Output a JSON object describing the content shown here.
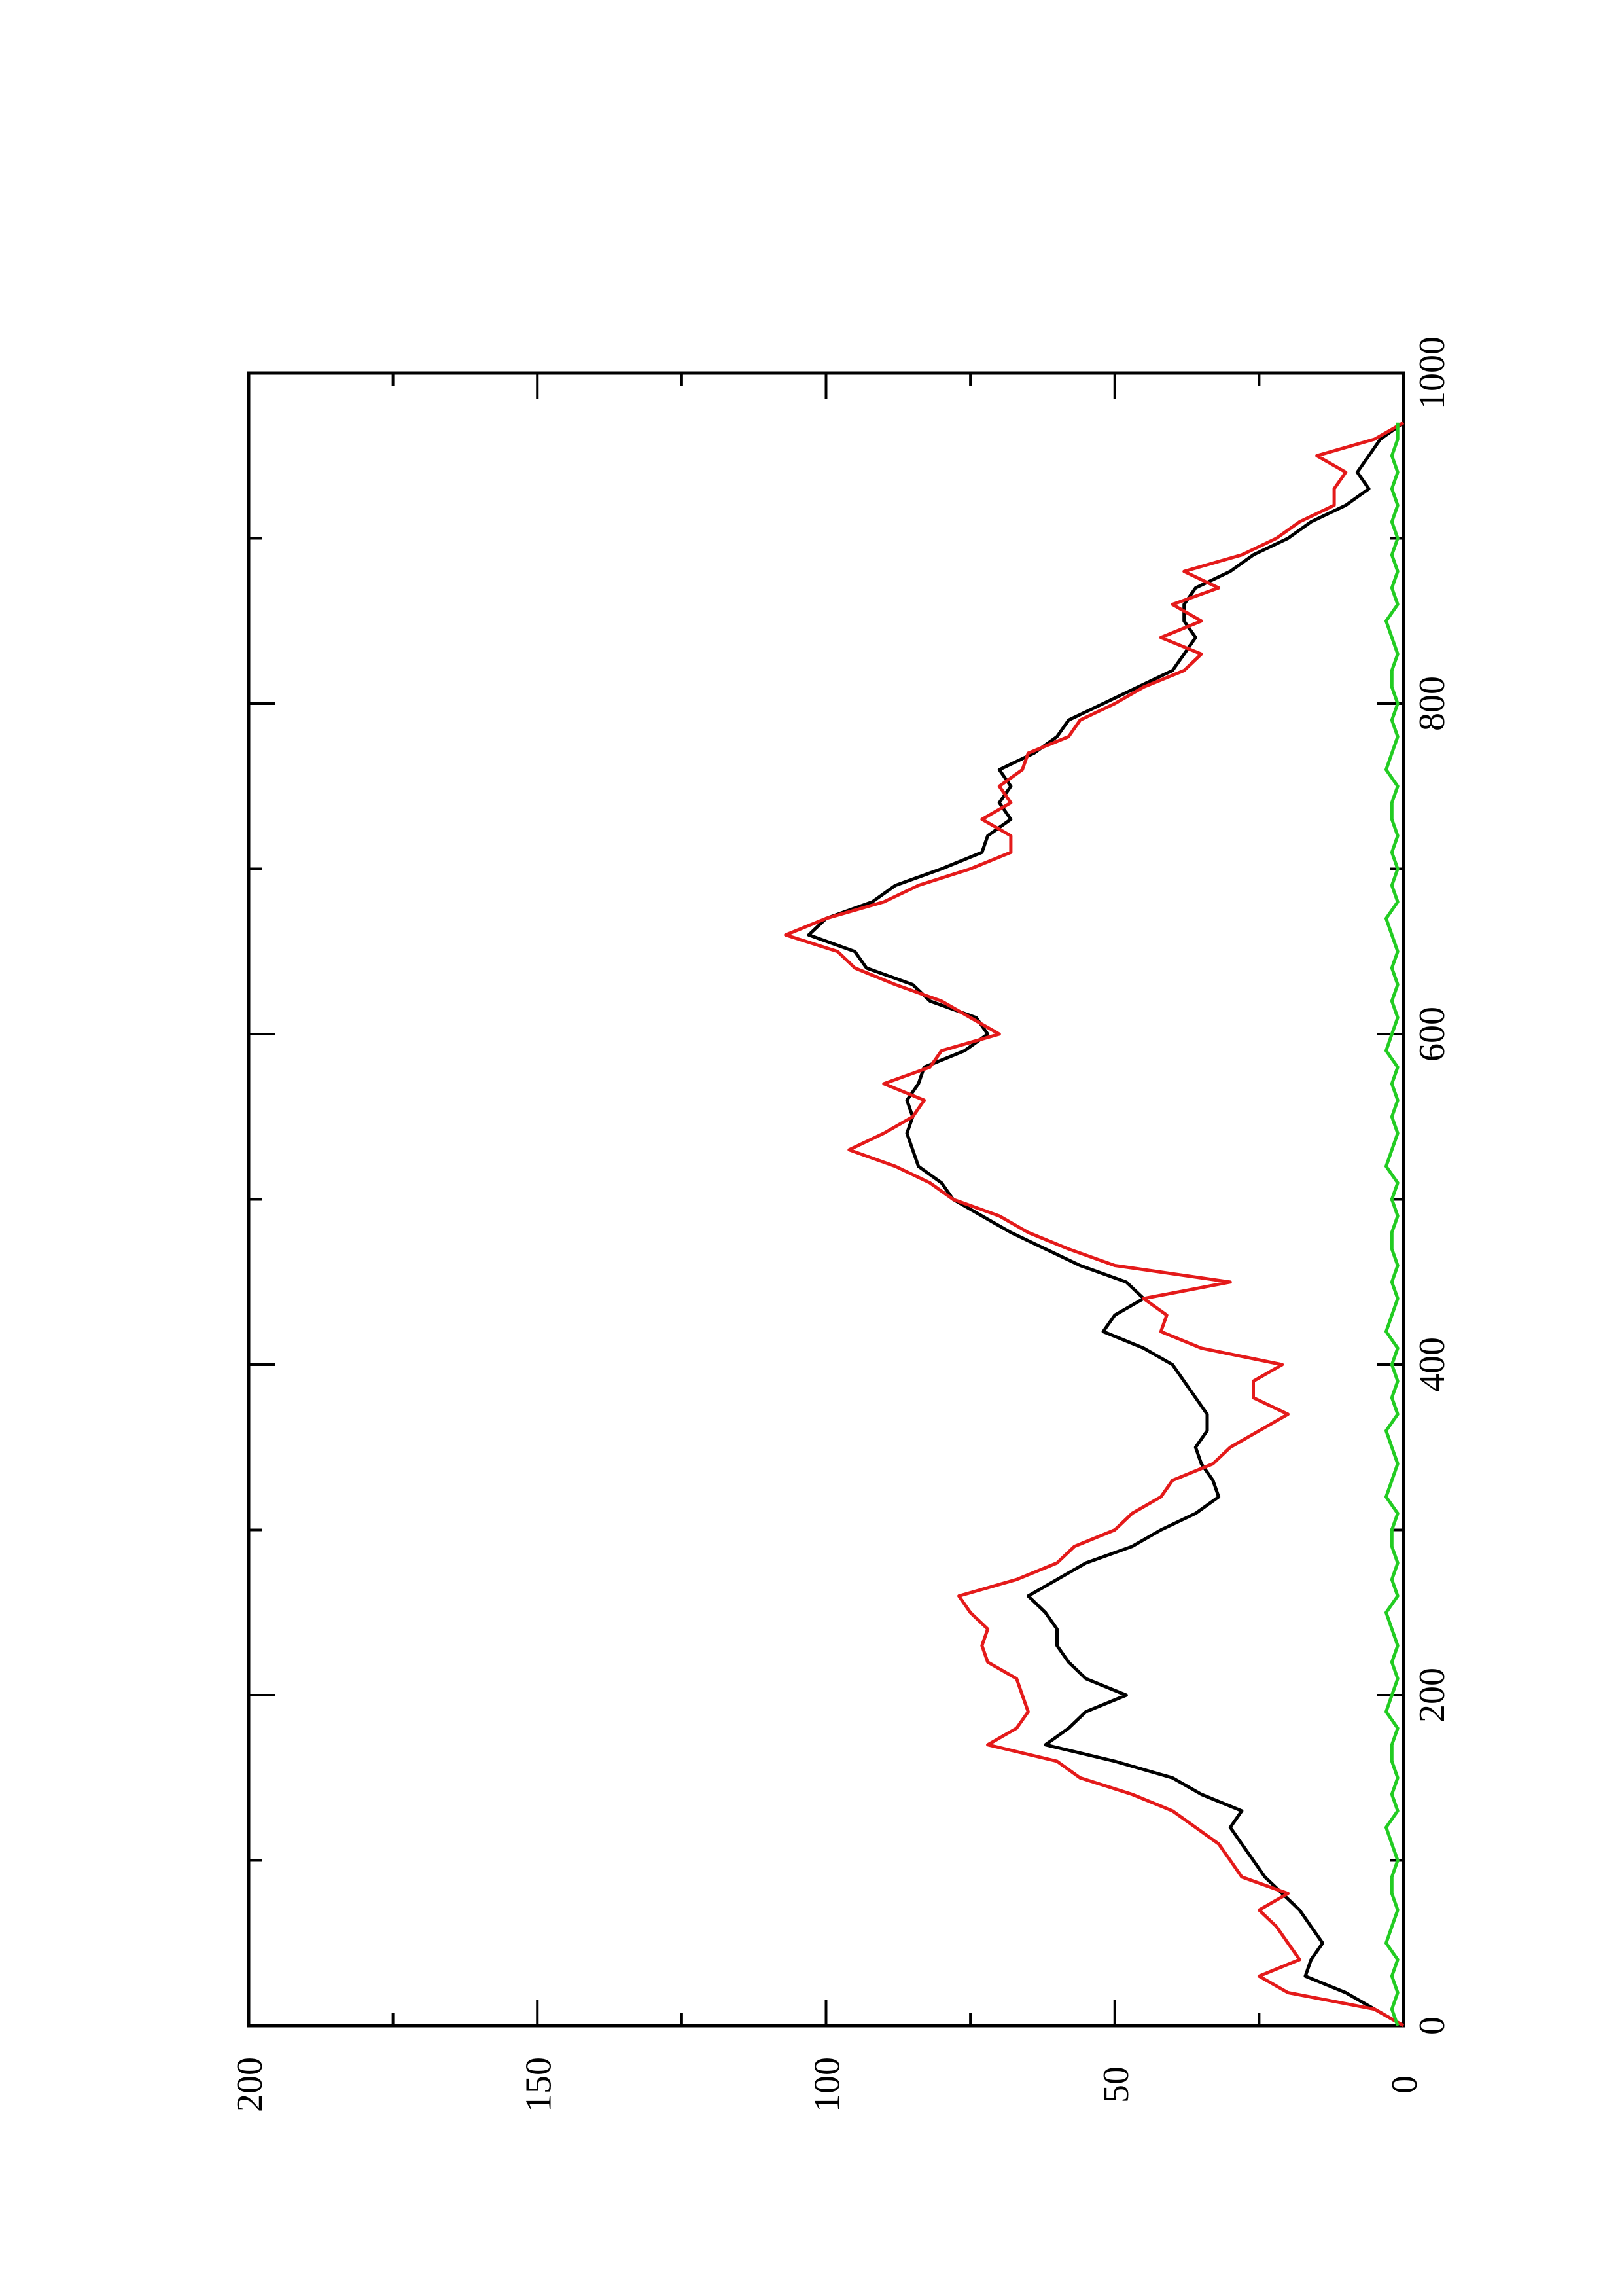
{
  "chart_data": {
    "type": "line",
    "title": "",
    "xlabel": "",
    "ylabel": "",
    "orientation": "rotated 90 degrees counter-clockwise (x axis runs bottom-to-top, y axis runs left-to-right)",
    "xlim": [
      0,
      1000
    ],
    "ylim": [
      0,
      200
    ],
    "x_ticks": [
      0,
      200,
      400,
      600,
      800,
      1000
    ],
    "y_ticks": [
      0,
      50,
      100,
      150,
      200
    ],
    "x_tick_labels": [
      "0",
      "200",
      "400",
      "600",
      "800",
      "1000"
    ],
    "y_tick_labels": [
      "0",
      "50",
      "100",
      "150",
      "200"
    ],
    "grid": false,
    "legend": "none",
    "series": [
      {
        "color": "#000000",
        "x": [
          0,
          10,
          20,
          30,
          40,
          50,
          60,
          70,
          80,
          90,
          100,
          110,
          120,
          130,
          140,
          150,
          160,
          170,
          180,
          190,
          200,
          210,
          220,
          230,
          240,
          250,
          260,
          270,
          280,
          290,
          300,
          310,
          320,
          330,
          340,
          350,
          360,
          370,
          380,
          390,
          400,
          410,
          420,
          430,
          440,
          450,
          460,
          470,
          480,
          490,
          500,
          510,
          520,
          530,
          540,
          550,
          560,
          570,
          580,
          590,
          600,
          610,
          620,
          630,
          640,
          650,
          660,
          670,
          680,
          690,
          700,
          710,
          720,
          730,
          740,
          750,
          760,
          770,
          780,
          790,
          800,
          810,
          820,
          830,
          840,
          850,
          860,
          870,
          880,
          890,
          900,
          910,
          920,
          930,
          940,
          950,
          960,
          970
        ],
        "y": [
          0,
          5,
          10,
          17,
          16,
          14,
          16,
          18,
          21,
          24,
          26,
          28,
          30,
          28,
          35,
          40,
          50,
          62,
          58,
          55,
          48,
          55,
          58,
          60,
          60,
          62,
          65,
          60,
          55,
          47,
          42,
          36,
          32,
          33,
          35,
          36,
          34,
          34,
          36,
          38,
          40,
          45,
          52,
          50,
          45,
          48,
          56,
          62,
          68,
          73,
          78,
          80,
          84,
          85,
          86,
          85,
          86,
          84,
          83,
          76,
          72,
          74,
          82,
          85,
          93,
          95,
          103,
          100,
          92,
          88,
          80,
          73,
          72,
          68,
          70,
          68,
          70,
          64,
          60,
          58,
          52,
          46,
          40,
          38,
          36,
          38,
          38,
          36,
          30,
          26,
          20,
          16,
          10,
          6,
          8,
          6,
          4,
          0
        ]
      },
      {
        "color": "#e41a1a",
        "x": [
          0,
          10,
          20,
          30,
          40,
          50,
          60,
          70,
          80,
          90,
          100,
          110,
          120,
          130,
          140,
          150,
          160,
          170,
          180,
          190,
          200,
          210,
          220,
          230,
          240,
          250,
          260,
          270,
          280,
          290,
          300,
          310,
          320,
          330,
          340,
          350,
          360,
          370,
          380,
          390,
          400,
          410,
          420,
          430,
          440,
          450,
          460,
          470,
          480,
          490,
          500,
          510,
          520,
          530,
          540,
          550,
          560,
          570,
          580,
          590,
          600,
          610,
          620,
          630,
          640,
          650,
          660,
          670,
          680,
          690,
          700,
          710,
          720,
          730,
          740,
          750,
          760,
          770,
          780,
          790,
          800,
          810,
          820,
          830,
          840,
          850,
          860,
          870,
          880,
          890,
          900,
          910,
          920,
          930,
          940,
          950,
          960,
          970
        ],
        "y": [
          0,
          5,
          20,
          25,
          18,
          20,
          22,
          25,
          20,
          28,
          30,
          32,
          36,
          40,
          47,
          56,
          60,
          72,
          67,
          65,
          66,
          67,
          72,
          73,
          72,
          75,
          77,
          67,
          60,
          57,
          50,
          47,
          42,
          40,
          33,
          30,
          25,
          20,
          26,
          26,
          21,
          35,
          42,
          41,
          45,
          30,
          50,
          58,
          65,
          70,
          78,
          82,
          88,
          96,
          90,
          85,
          83,
          90,
          82,
          80,
          70,
          75,
          80,
          88,
          95,
          98,
          107,
          100,
          90,
          84,
          75,
          68,
          68,
          73,
          68,
          70,
          66,
          65,
          58,
          56,
          50,
          45,
          38,
          35,
          42,
          35,
          40,
          32,
          38,
          28,
          22,
          18,
          12,
          12,
          10,
          15,
          5,
          0
        ]
      },
      {
        "color": "#22cc22",
        "x": [
          0,
          10,
          20,
          30,
          40,
          50,
          60,
          70,
          80,
          90,
          100,
          110,
          120,
          130,
          140,
          150,
          160,
          170,
          180,
          190,
          200,
          210,
          220,
          230,
          240,
          250,
          260,
          270,
          280,
          290,
          300,
          310,
          320,
          330,
          340,
          350,
          360,
          370,
          380,
          390,
          400,
          410,
          420,
          430,
          440,
          450,
          460,
          470,
          480,
          490,
          500,
          510,
          520,
          530,
          540,
          550,
          560,
          570,
          580,
          590,
          600,
          610,
          620,
          630,
          640,
          650,
          660,
          670,
          680,
          690,
          700,
          710,
          720,
          730,
          740,
          750,
          760,
          770,
          780,
          790,
          800,
          810,
          820,
          830,
          840,
          850,
          860,
          870,
          880,
          890,
          900,
          910,
          920,
          930,
          940,
          950,
          960,
          970
        ],
        "y": [
          1,
          2,
          1,
          2,
          1,
          3,
          2,
          1,
          2,
          2,
          1,
          2,
          3,
          1,
          2,
          1,
          2,
          2,
          1,
          3,
          2,
          1,
          2,
          1,
          2,
          3,
          1,
          2,
          1,
          2,
          2,
          1,
          3,
          2,
          1,
          2,
          3,
          1,
          2,
          1,
          2,
          1,
          3,
          2,
          1,
          2,
          1,
          2,
          2,
          1,
          2,
          1,
          3,
          2,
          1,
          2,
          1,
          2,
          1,
          3,
          2,
          1,
          2,
          1,
          2,
          1,
          2,
          3,
          1,
          2,
          1,
          2,
          1,
          2,
          2,
          1,
          3,
          2,
          1,
          2,
          1,
          2,
          2,
          1,
          2,
          3,
          1,
          2,
          1,
          2,
          1,
          2,
          1,
          2,
          1,
          2,
          1,
          1
        ]
      }
    ]
  }
}
